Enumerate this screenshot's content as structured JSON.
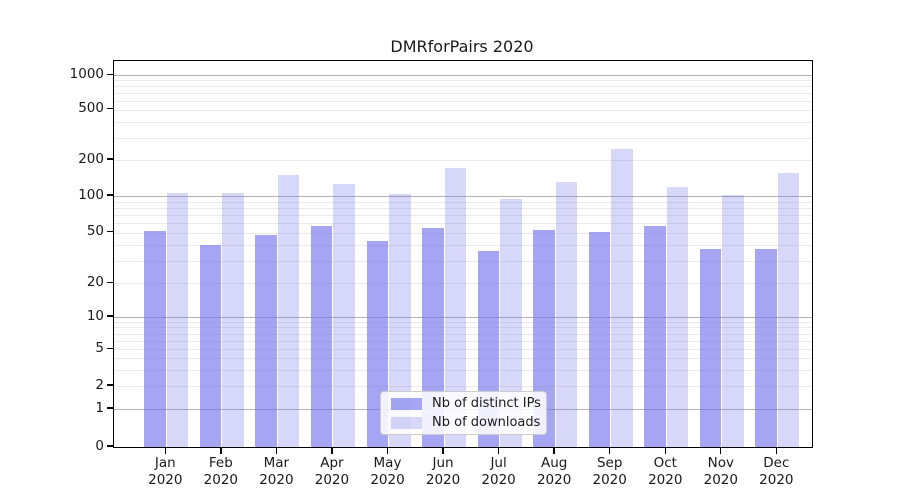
{
  "title": "DMRforPairs 2020",
  "chart_data": {
    "type": "bar",
    "title": "DMRforPairs 2020",
    "categories": [
      "Jan",
      "Feb",
      "Mar",
      "Apr",
      "May",
      "Jun",
      "Jul",
      "Aug",
      "Sep",
      "Oct",
      "Nov",
      "Dec"
    ],
    "category_year": "2020",
    "series": [
      {
        "name": "Nb of distinct IPs",
        "color": "rgba(110,110,235,0.62)",
        "values": [
          52,
          40,
          48,
          57,
          43,
          55,
          36,
          53,
          51,
          57,
          37,
          37
        ]
      },
      {
        "name": "Nb of downloads",
        "color": "rgba(110,110,235,0.28)",
        "values": [
          105,
          105,
          150,
          125,
          103,
          170,
          95,
          130,
          245,
          120,
          101,
          155
        ]
      }
    ],
    "xlabel": "",
    "ylabel": "",
    "y_scale": "symlog",
    "y_ticks": [
      1000,
      500,
      200,
      100,
      50,
      20,
      10,
      5,
      2,
      1,
      0
    ],
    "ylim": [
      0,
      1300
    ],
    "grid": true,
    "grid_major_color": "#b3b3b3",
    "grid_minor_color": "#eaeaea",
    "legend_position": "inside-bottom-center"
  }
}
